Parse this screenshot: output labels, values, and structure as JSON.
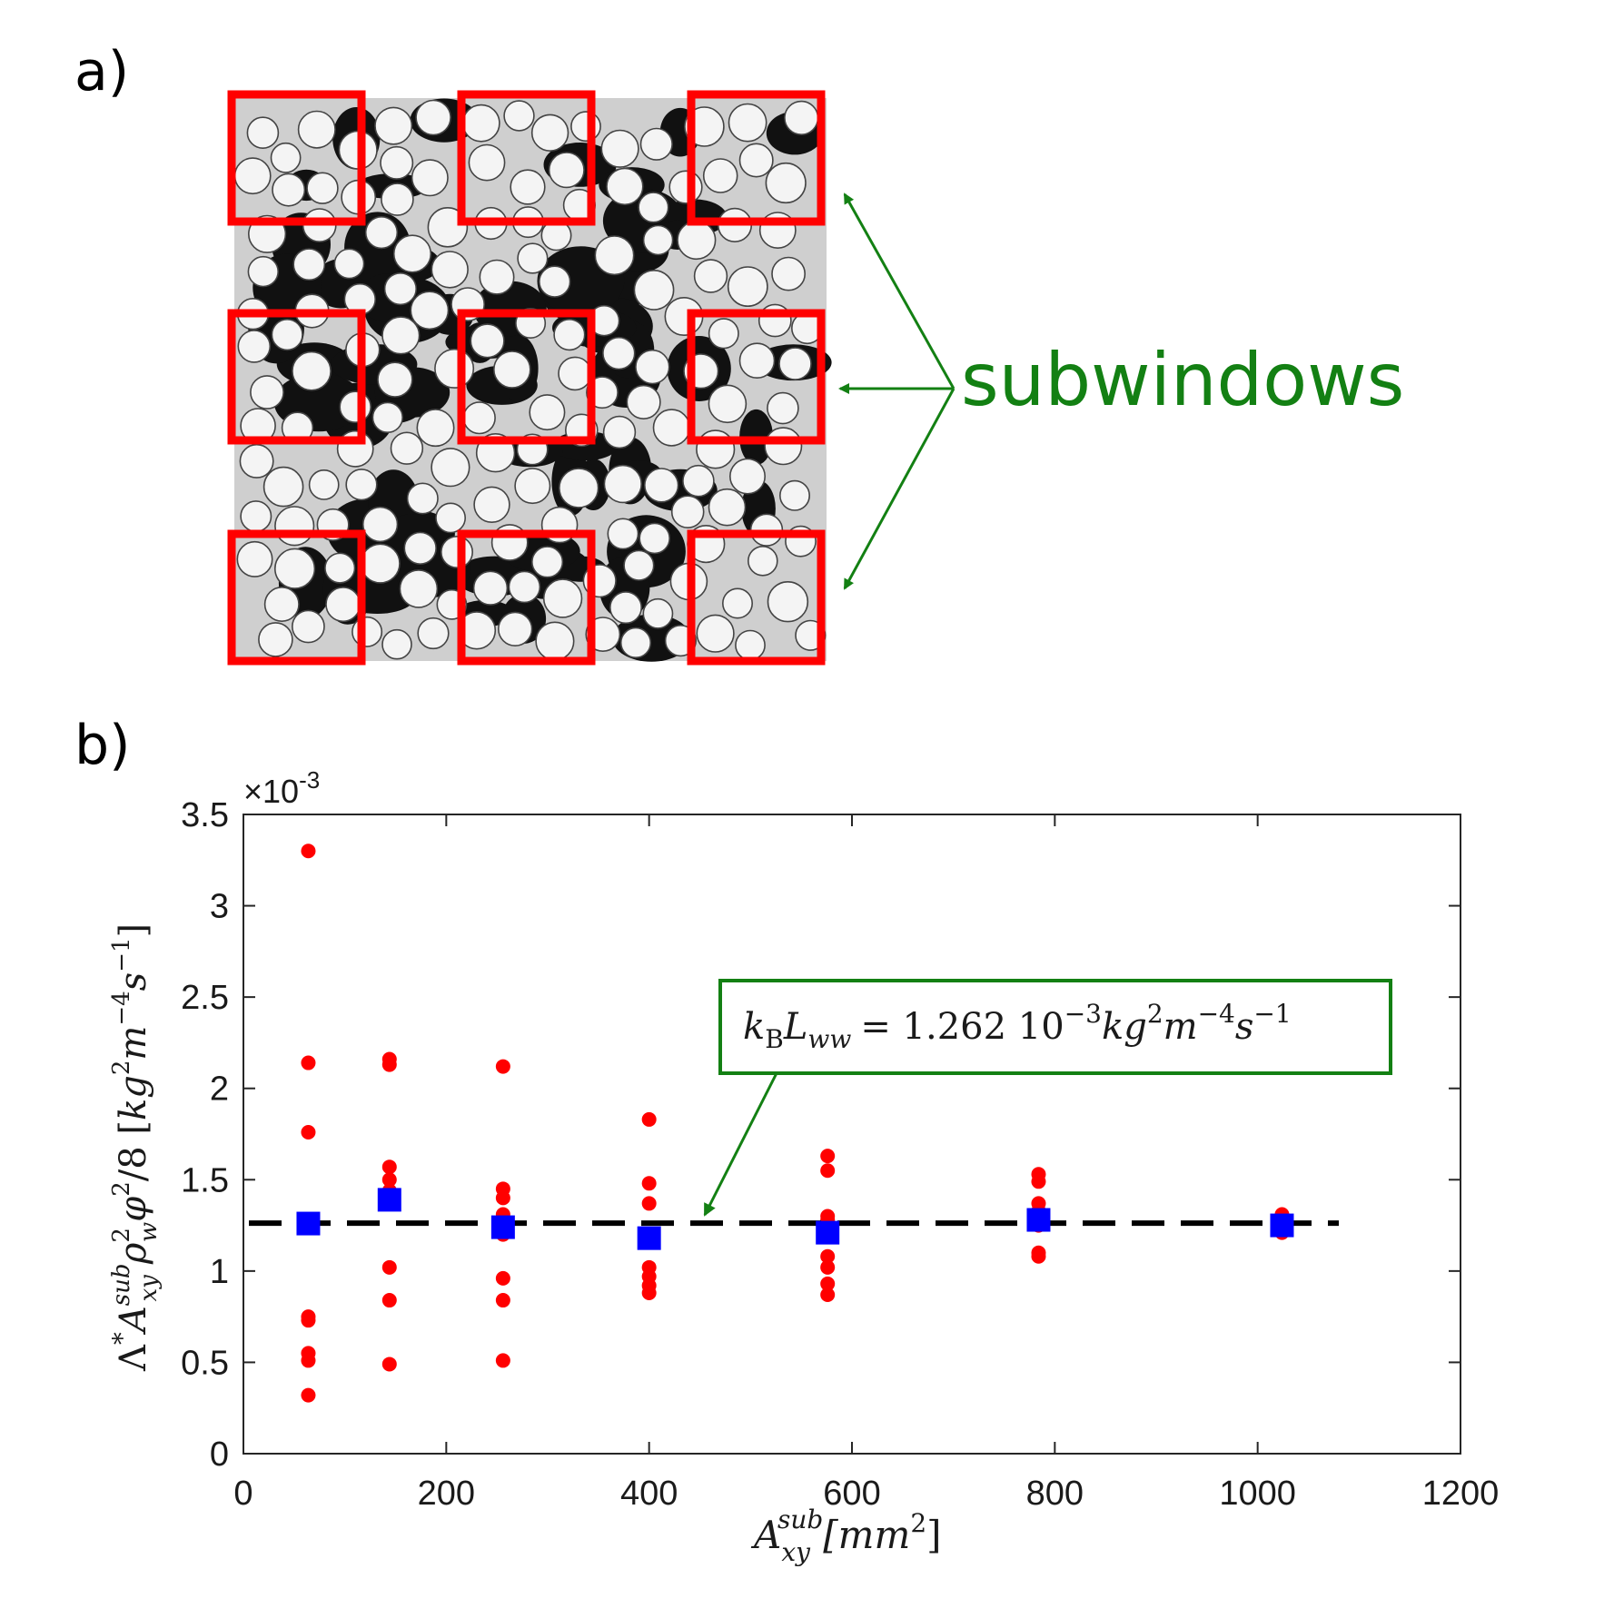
{
  "panels": {
    "a": {
      "label": "a)"
    },
    "b": {
      "label": "b)"
    }
  },
  "micrograph": {
    "annotation": "subwindows",
    "annotation_color": "#138013",
    "box_color": "#ff0000",
    "grid_rows": 3,
    "grid_cols": 3
  },
  "chart_data": {
    "type": "scatter",
    "title": "",
    "xlabel": "A_xy^sub [mm^2]",
    "ylabel": "Λ* A_xy^sub ρ_w^2 φ^2 / 8 [kg^2 m^-4 s^-1]",
    "y_multiplier": "×10",
    "y_multiplier_exponent": "-3",
    "xlim": [
      0,
      1200
    ],
    "ylim": [
      0,
      3.5
    ],
    "x_ticks": [
      "0",
      "200",
      "400",
      "600",
      "800",
      "1000",
      "1200"
    ],
    "y_ticks": [
      "0",
      "0.5",
      "1",
      "1.5",
      "2",
      "2.5",
      "3",
      "3.5"
    ],
    "grid": false,
    "series": [
      {
        "marker": "circle",
        "color": "#ff0000",
        "points": [
          [
            64,
            3.3
          ],
          [
            64,
            2.14
          ],
          [
            64,
            1.76
          ],
          [
            64,
            1.26
          ],
          [
            64,
            0.75
          ],
          [
            64,
            0.73
          ],
          [
            64,
            0.55
          ],
          [
            64,
            0.51
          ],
          [
            64,
            0.32
          ],
          [
            144,
            2.16
          ],
          [
            144,
            2.13
          ],
          [
            144,
            1.57
          ],
          [
            144,
            1.5
          ],
          [
            144,
            1.44
          ],
          [
            144,
            1.02
          ],
          [
            144,
            0.84
          ],
          [
            144,
            0.49
          ],
          [
            256,
            2.12
          ],
          [
            256,
            1.45
          ],
          [
            256,
            1.4
          ],
          [
            256,
            1.31
          ],
          [
            256,
            1.25
          ],
          [
            256,
            1.2
          ],
          [
            256,
            0.96
          ],
          [
            256,
            0.84
          ],
          [
            256,
            0.51
          ],
          [
            400,
            1.83
          ],
          [
            400,
            1.48
          ],
          [
            400,
            1.37
          ],
          [
            400,
            1.2
          ],
          [
            400,
            1.02
          ],
          [
            400,
            0.97
          ],
          [
            400,
            0.92
          ],
          [
            400,
            0.88
          ],
          [
            576,
            1.63
          ],
          [
            576,
            1.55
          ],
          [
            576,
            1.3
          ],
          [
            576,
            1.28
          ],
          [
            576,
            1.08
          ],
          [
            576,
            1.02
          ],
          [
            576,
            0.93
          ],
          [
            576,
            0.87
          ],
          [
            784,
            1.53
          ],
          [
            784,
            1.49
          ],
          [
            784,
            1.37
          ],
          [
            784,
            1.33
          ],
          [
            784,
            1.25
          ],
          [
            784,
            1.1
          ],
          [
            784,
            1.08
          ],
          [
            1024,
            1.31
          ],
          [
            1024,
            1.21
          ]
        ]
      },
      {
        "marker": "square",
        "color": "#0000ff",
        "points": [
          [
            64,
            1.26
          ],
          [
            144,
            1.39
          ],
          [
            256,
            1.24
          ],
          [
            400,
            1.18
          ],
          [
            576,
            1.21
          ],
          [
            784,
            1.28
          ],
          [
            1024,
            1.25
          ]
        ]
      }
    ],
    "reference_line": {
      "y": 1.262,
      "x_start": 0,
      "x_end": 1080,
      "style": "dashed",
      "color": "#000000"
    },
    "annotation": {
      "text": "k_B L_ww = 1.262 10^-3 kg^2 m^-4 s^-1",
      "box_color": "#138013",
      "arrow_color": "#138013",
      "parts": {
        "k": "k",
        "B": "B",
        "L": "L",
        "ww": "ww",
        "eq": "= 1.262 10",
        "e1": "−3",
        "kg": "kg",
        "e2": "2",
        "m": "m",
        "e3": "−4",
        "s": "s",
        "e4": "−1"
      }
    },
    "xlabel_parts": {
      "base": "A",
      "sub": "xy",
      "sup": "sub",
      "unit_open": "[mm",
      "unit_sup": "2",
      "unit_close": "]"
    },
    "ylabel_parts": {
      "lambda": "Λ",
      "star": "*",
      "A": "A",
      "A_sup": "sub",
      "A_sub": "xy",
      "rho": "ρ",
      "rho_sup": "2",
      "rho_sub": "w",
      "phi": "φ",
      "phi_sup": "2",
      "div8": "/8 [",
      "kg": "kg",
      "kg_sup": "2",
      "m": "m",
      "m_sup": "−4",
      "s": "s",
      "s_sup": "−1",
      "close": "]"
    }
  }
}
